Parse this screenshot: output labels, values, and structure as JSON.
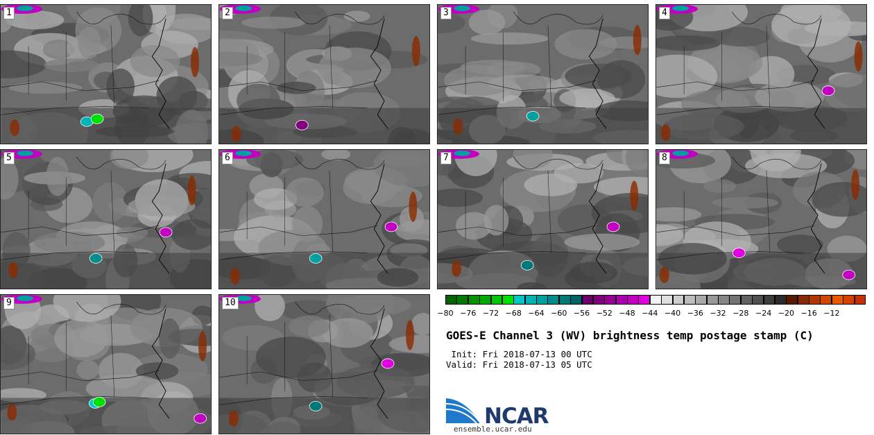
{
  "panels": [
    {
      "label": "1"
    },
    {
      "label": "2"
    },
    {
      "label": "3"
    },
    {
      "label": "4"
    },
    {
      "label": "5"
    },
    {
      "label": "6"
    },
    {
      "label": "7"
    },
    {
      "label": "8"
    },
    {
      "label": "9"
    },
    {
      "label": "10"
    }
  ],
  "legend": {
    "colors": [
      "#006400",
      "#007a00",
      "#009200",
      "#00aa00",
      "#00c800",
      "#00e000",
      "#00c8c8",
      "#00b4b4",
      "#00a0a0",
      "#008c8c",
      "#007878",
      "#006464",
      "#6a006a",
      "#800080",
      "#960096",
      "#ac00ac",
      "#c200c2",
      "#e000e0",
      "#f2f2f2",
      "#e0e0e0",
      "#cecece",
      "#bcbcbc",
      "#aaaaaa",
      "#989898",
      "#868686",
      "#747474",
      "#626262",
      "#505050",
      "#3e3e3e",
      "#2c2c2c",
      "#5a1a00",
      "#8a2a00",
      "#b03800",
      "#d04800",
      "#e85a00",
      "#d84000",
      "#c83000"
    ],
    "ticks": [
      "−80",
      "−76",
      "−72",
      "−68",
      "−64",
      "−60",
      "−56",
      "−52",
      "−48",
      "−44",
      "−40",
      "−36",
      "−32",
      "−28",
      "−24",
      "−20",
      "−16",
      "−12"
    ]
  },
  "title": "GOES-E Channel 3 (WV) brightness temp postage stamp (C)",
  "init_line": " Init: Fri 2018-07-13 00 UTC",
  "valid_line": "Valid: Fri 2018-07-13 05 UTC",
  "logo_text": "NCAR",
  "site": "ensemble.ucar.edu"
}
